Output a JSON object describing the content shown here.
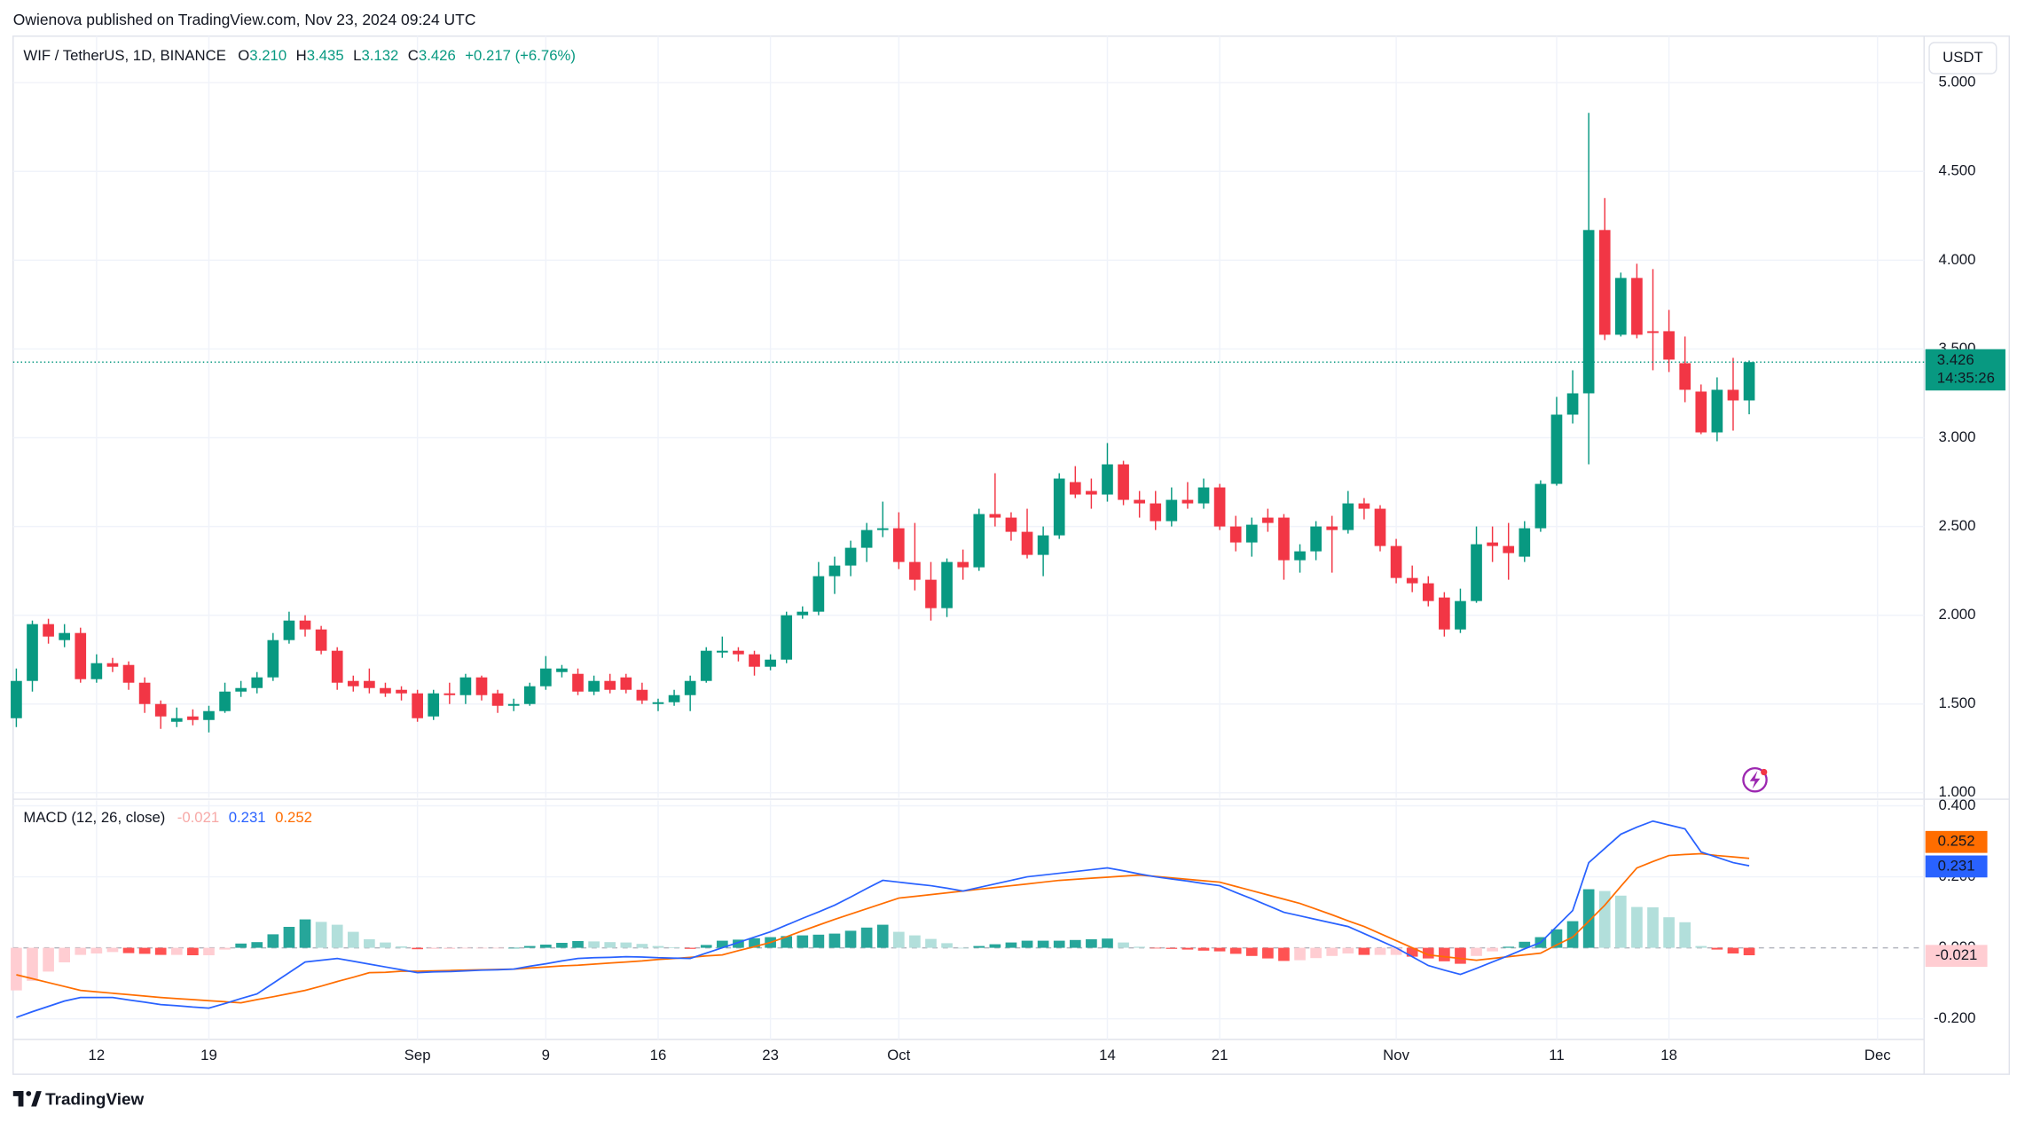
{
  "header": {
    "publisher": "Owienova published on TradingView.com, Nov 23, 2024 09:24 UTC",
    "brand": "TradingView"
  },
  "chart_data": [
    {
      "type": "candlestick",
      "symbol": "WIF / TetherUS, 1D, BINANCE",
      "ohlc_labels": [
        "O",
        "H",
        "L",
        "C"
      ],
      "ohlc_values": [
        "3.210",
        "3.435",
        "3.132",
        "3.426"
      ],
      "change": "+0.217 (+6.76%)",
      "currency": "USDT",
      "countdown": "14:35:26",
      "open": [
        1.42,
        1.63,
        1.95,
        1.86,
        1.9,
        1.64,
        1.73,
        1.72,
        1.62,
        1.5,
        1.4,
        1.43,
        1.41,
        1.46,
        1.57,
        1.59,
        1.65,
        1.86,
        1.97,
        1.92,
        1.8,
        1.63,
        1.63,
        1.59,
        1.58,
        1.56,
        1.43,
        1.56,
        1.55,
        1.65,
        1.56,
        1.49,
        1.5,
        1.6,
        1.68,
        1.67,
        1.57,
        1.63,
        1.65,
        1.58,
        1.5,
        1.51,
        1.55,
        1.63,
        1.79,
        1.8,
        1.78,
        1.71,
        1.75,
        2.0,
        2.02,
        2.22,
        2.28,
        2.38,
        2.48,
        2.49,
        2.3,
        2.2,
        2.04,
        2.3,
        2.27,
        2.57,
        2.55,
        2.47,
        2.34,
        2.45,
        2.75,
        2.7,
        2.68,
        2.85,
        2.65,
        2.63,
        2.53,
        2.65,
        2.63,
        2.72,
        2.5,
        2.41,
        2.55,
        2.55,
        2.31,
        2.36,
        2.5,
        2.48,
        2.63,
        2.6,
        2.39,
        2.21,
        2.18,
        2.1,
        1.92,
        2.08,
        2.41,
        2.39,
        2.33,
        2.49,
        2.74,
        3.13,
        3.25,
        4.17,
        3.58,
        3.9,
        3.6,
        3.6,
        3.42,
        3.26,
        3.03,
        3.27,
        3.21
      ],
      "high": [
        1.7,
        1.97,
        1.98,
        1.95,
        1.93,
        1.78,
        1.76,
        1.74,
        1.65,
        1.52,
        1.48,
        1.47,
        1.49,
        1.62,
        1.63,
        1.68,
        1.9,
        2.02,
        2.0,
        1.94,
        1.82,
        1.66,
        1.7,
        1.62,
        1.6,
        1.58,
        1.58,
        1.62,
        1.67,
        1.66,
        1.58,
        1.53,
        1.62,
        1.77,
        1.72,
        1.7,
        1.66,
        1.67,
        1.67,
        1.62,
        1.53,
        1.58,
        1.66,
        1.82,
        1.88,
        1.82,
        1.8,
        1.78,
        2.02,
        2.05,
        2.3,
        2.33,
        2.42,
        2.52,
        2.64,
        2.58,
        2.52,
        2.3,
        2.32,
        2.37,
        2.6,
        2.8,
        2.58,
        2.6,
        2.5,
        2.8,
        2.84,
        2.77,
        2.97,
        2.87,
        2.7,
        2.7,
        2.72,
        2.75,
        2.77,
        2.74,
        2.56,
        2.55,
        2.6,
        2.57,
        2.4,
        2.53,
        2.56,
        2.7,
        2.66,
        2.62,
        2.43,
        2.28,
        2.22,
        2.13,
        2.15,
        2.5,
        2.5,
        2.52,
        2.53,
        2.76,
        3.23,
        3.38,
        4.83,
        4.35,
        3.93,
        3.98,
        3.95,
        3.72,
        3.57,
        3.3,
        3.34,
        3.45,
        3.435
      ],
      "low": [
        1.37,
        1.57,
        1.84,
        1.82,
        1.62,
        1.62,
        1.68,
        1.58,
        1.45,
        1.36,
        1.37,
        1.38,
        1.34,
        1.45,
        1.54,
        1.56,
        1.63,
        1.84,
        1.88,
        1.78,
        1.58,
        1.57,
        1.56,
        1.54,
        1.52,
        1.4,
        1.41,
        1.5,
        1.5,
        1.52,
        1.45,
        1.46,
        1.49,
        1.58,
        1.65,
        1.55,
        1.55,
        1.56,
        1.56,
        1.5,
        1.46,
        1.49,
        1.46,
        1.62,
        1.76,
        1.74,
        1.66,
        1.69,
        1.73,
        1.98,
        2.0,
        2.12,
        2.22,
        2.3,
        2.44,
        2.26,
        2.14,
        1.97,
        1.99,
        2.2,
        2.25,
        2.5,
        2.42,
        2.32,
        2.22,
        2.43,
        2.66,
        2.6,
        2.64,
        2.62,
        2.55,
        2.48,
        2.5,
        2.6,
        2.6,
        2.48,
        2.36,
        2.33,
        2.47,
        2.2,
        2.24,
        2.31,
        2.24,
        2.46,
        2.54,
        2.36,
        2.18,
        2.13,
        2.05,
        1.88,
        1.9,
        2.07,
        2.3,
        2.2,
        2.3,
        2.47,
        2.73,
        3.08,
        2.85,
        3.55,
        3.57,
        3.56,
        3.38,
        3.37,
        3.2,
        3.02,
        2.98,
        3.04,
        3.132
      ],
      "close": [
        1.63,
        1.95,
        1.88,
        1.9,
        1.64,
        1.73,
        1.71,
        1.62,
        1.5,
        1.43,
        1.42,
        1.41,
        1.46,
        1.57,
        1.59,
        1.65,
        1.86,
        1.97,
        1.92,
        1.8,
        1.62,
        1.6,
        1.59,
        1.56,
        1.56,
        1.42,
        1.56,
        1.55,
        1.65,
        1.55,
        1.49,
        1.5,
        1.6,
        1.7,
        1.7,
        1.57,
        1.63,
        1.58,
        1.58,
        1.52,
        1.51,
        1.55,
        1.63,
        1.8,
        1.8,
        1.78,
        1.71,
        1.75,
        2.0,
        2.02,
        2.22,
        2.28,
        2.38,
        2.48,
        2.49,
        2.3,
        2.2,
        2.04,
        2.3,
        2.27,
        2.57,
        2.55,
        2.47,
        2.34,
        2.45,
        2.77,
        2.68,
        2.68,
        2.85,
        2.65,
        2.63,
        2.53,
        2.65,
        2.63,
        2.72,
        2.5,
        2.41,
        2.51,
        2.52,
        2.31,
        2.36,
        2.5,
        2.48,
        2.63,
        2.6,
        2.39,
        2.21,
        2.18,
        2.08,
        1.92,
        2.08,
        2.4,
        2.39,
        2.35,
        2.49,
        2.74,
        3.13,
        3.25,
        4.17,
        3.58,
        3.9,
        3.58,
        3.59,
        3.44,
        3.27,
        3.03,
        3.27,
        3.21,
        3.426
      ],
      "up_color": "#089981",
      "down_color": "#f23645",
      "xlim": [
        -0.2,
        118.9
      ],
      "xticks": [
        {
          "value": 5,
          "label": "12"
        },
        {
          "value": 12,
          "label": "19"
        },
        {
          "value": 25,
          "label": "Sep"
        },
        {
          "value": 33,
          "label": "9"
        },
        {
          "value": 40,
          "label": "16"
        },
        {
          "value": 47,
          "label": "23"
        },
        {
          "value": 55,
          "label": "Oct"
        },
        {
          "value": 68,
          "label": "14"
        },
        {
          "value": 75,
          "label": "21"
        },
        {
          "value": 86,
          "label": "Nov"
        },
        {
          "value": 96,
          "label": "11"
        },
        {
          "value": 103,
          "label": "18"
        },
        {
          "value": 116,
          "label": "Dec"
        }
      ],
      "ylim": [
        0.971,
        5.262
      ],
      "yticks": [
        {
          "value": 1,
          "label": "1.000"
        },
        {
          "value": 1.5,
          "label": "1.500"
        },
        {
          "value": 2,
          "label": "2.000"
        },
        {
          "value": 2.5,
          "label": "2.500"
        },
        {
          "value": 3,
          "label": "3.000"
        },
        {
          "value": 3.5,
          "label": "3.500"
        },
        {
          "value": 4,
          "label": "4.000"
        },
        {
          "value": 4.5,
          "label": "4.500"
        },
        {
          "value": 5,
          "label": "5.000"
        }
      ],
      "grid": true
    },
    {
      "type": "macd",
      "title": "MACD (12, 26, close)",
      "histogram": {
        "colors": [
          "#26a69a",
          "#b2dfdb",
          "#ff5252",
          "#ffcdd2"
        ],
        "values": [
          -0.12,
          -0.093,
          -0.067,
          -0.041,
          -0.02,
          -0.016,
          -0.012,
          -0.015,
          -0.017,
          -0.02,
          -0.02,
          -0.021,
          -0.021,
          -0.005,
          0.012,
          0.016,
          0.038,
          0.059,
          0.08,
          0.073,
          0.065,
          0.045,
          0.024,
          0.015,
          0.004,
          -0.004,
          -0.003,
          -0.003,
          -0.002,
          -0.001,
          -0.001,
          0.0,
          0.005,
          0.009,
          0.014,
          0.019,
          0.018,
          0.016,
          0.015,
          0.011,
          0.005,
          0.001,
          -0.003,
          0.008,
          0.02,
          0.023,
          0.027,
          0.03,
          0.033,
          0.035,
          0.037,
          0.04,
          0.048,
          0.057,
          0.065,
          0.045,
          0.035,
          0.025,
          0.013,
          0.0,
          0.005,
          0.01,
          0.015,
          0.02,
          0.02,
          0.02,
          0.022,
          0.024,
          0.026,
          0.015,
          0.003,
          -0.001,
          -0.003,
          -0.005,
          -0.008,
          -0.01,
          -0.017,
          -0.023,
          -0.03,
          -0.037,
          -0.035,
          -0.029,
          -0.023,
          -0.016,
          -0.02,
          -0.02,
          -0.02,
          -0.025,
          -0.03,
          -0.038,
          -0.045,
          -0.023,
          -0.01,
          0.003,
          0.017,
          0.03,
          0.052,
          0.075,
          0.165,
          0.16,
          0.147,
          0.115,
          0.114,
          0.086,
          0.072,
          0.005,
          -0.005,
          -0.016,
          -0.021
        ]
      },
      "macd": {
        "color": "#2962ff",
        "values": [
          -0.196,
          -0.18,
          -0.165,
          -0.15,
          -0.14,
          -0.14,
          -0.14,
          -0.147,
          -0.153,
          -0.16,
          -0.163,
          -0.167,
          -0.17,
          -0.157,
          -0.143,
          -0.13,
          -0.1,
          -0.07,
          -0.04,
          -0.035,
          -0.03,
          -0.038,
          -0.046,
          -0.054,
          -0.062,
          -0.07,
          -0.068,
          -0.067,
          -0.065,
          -0.063,
          -0.062,
          -0.06,
          -0.052,
          -0.045,
          -0.037,
          -0.03,
          -0.028,
          -0.027,
          -0.025,
          -0.026,
          -0.028,
          -0.029,
          -0.03,
          -0.015,
          0.0,
          0.015,
          0.03,
          0.045,
          0.064,
          0.083,
          0.101,
          0.12,
          0.143,
          0.167,
          0.19,
          0.185,
          0.18,
          0.175,
          0.168,
          0.16,
          0.17,
          0.18,
          0.19,
          0.2,
          0.205,
          0.21,
          0.215,
          0.22,
          0.225,
          0.217,
          0.208,
          0.2,
          0.194,
          0.188,
          0.181,
          0.175,
          0.156,
          0.138,
          0.119,
          0.1,
          0.09,
          0.08,
          0.07,
          0.06,
          0.04,
          0.02,
          0.0,
          -0.025,
          -0.05,
          -0.063,
          -0.075,
          -0.058,
          -0.04,
          -0.022,
          -0.003,
          0.015,
          0.06,
          0.105,
          0.24,
          0.28,
          0.32,
          0.34,
          0.357,
          0.346,
          0.335,
          0.27,
          0.255,
          0.24,
          0.231
        ]
      },
      "signal": {
        "color": "#ff6d00",
        "values": [
          -0.076,
          -0.087,
          -0.098,
          -0.109,
          -0.12,
          -0.124,
          -0.128,
          -0.132,
          -0.136,
          -0.14,
          -0.143,
          -0.146,
          -0.149,
          -0.152,
          -0.155,
          -0.146,
          -0.138,
          -0.129,
          -0.12,
          -0.108,
          -0.095,
          -0.083,
          -0.07,
          -0.069,
          -0.066,
          -0.066,
          -0.065,
          -0.064,
          -0.063,
          -0.062,
          -0.061,
          -0.06,
          -0.057,
          -0.054,
          -0.051,
          -0.049,
          -0.046,
          -0.043,
          -0.04,
          -0.037,
          -0.033,
          -0.03,
          -0.027,
          -0.023,
          -0.02,
          -0.008,
          0.003,
          0.015,
          0.031,
          0.048,
          0.064,
          0.08,
          0.095,
          0.11,
          0.125,
          0.14,
          0.145,
          0.15,
          0.155,
          0.16,
          0.165,
          0.17,
          0.175,
          0.18,
          0.185,
          0.19,
          0.193,
          0.196,
          0.199,
          0.202,
          0.205,
          0.201,
          0.197,
          0.193,
          0.189,
          0.185,
          0.173,
          0.161,
          0.149,
          0.137,
          0.125,
          0.109,
          0.093,
          0.076,
          0.06,
          0.04,
          0.02,
          0.0,
          -0.02,
          -0.025,
          -0.03,
          -0.035,
          -0.03,
          -0.025,
          -0.02,
          -0.015,
          0.008,
          0.03,
          0.075,
          0.12,
          0.173,
          0.225,
          0.243,
          0.26,
          0.263,
          0.265,
          0.26,
          0.256,
          0.252
        ]
      },
      "ylim": [
        -0.258,
        0.415
      ],
      "yticks": [
        {
          "value": 0.4,
          "label": "0.400"
        },
        {
          "value": 0.2,
          "label": "0.200"
        },
        {
          "value": 0,
          "label": "0.000"
        },
        {
          "value": -0.2,
          "label": "-0.200"
        }
      ],
      "grid": true
    }
  ]
}
